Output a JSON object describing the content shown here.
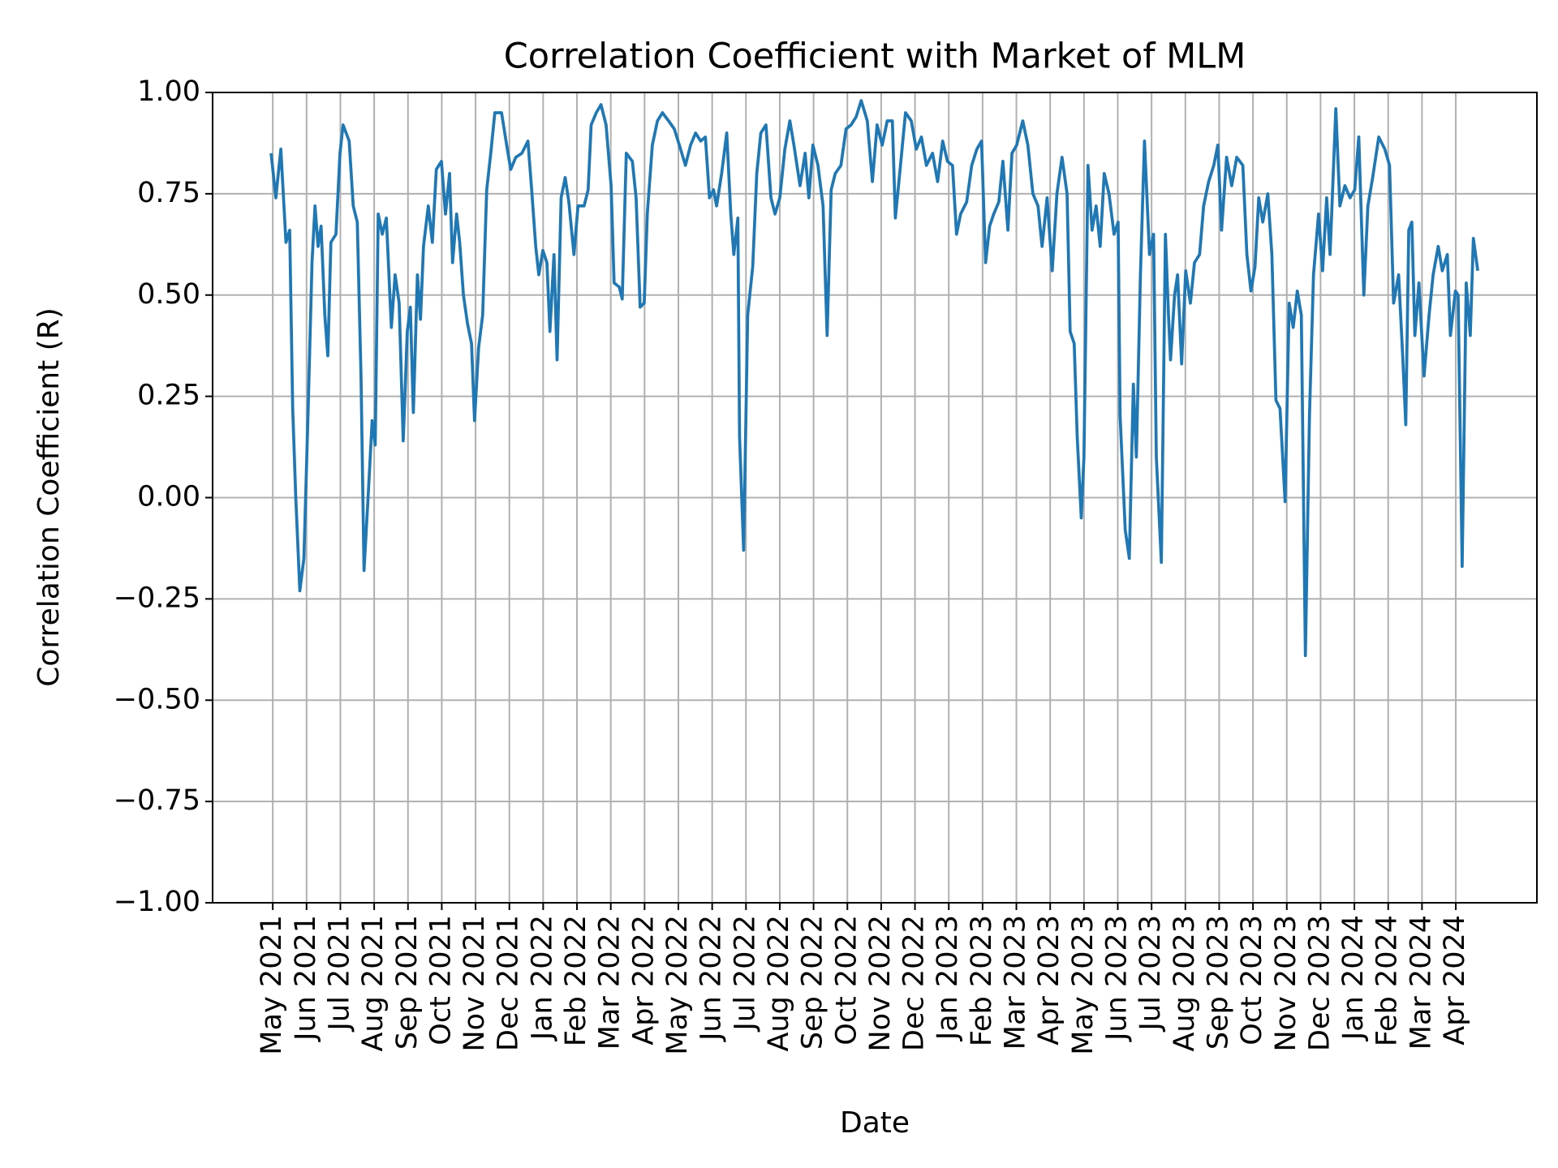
{
  "chart_data": {
    "type": "line",
    "title": "Correlation Coefficient with Market of MLM",
    "x_label": "Date",
    "y_label": "Correlation Coefficient (R)",
    "color": "#1f77b4",
    "grid": true,
    "xlim": [
      -1.78,
      37.4
    ],
    "ylim": [
      -1,
      1
    ],
    "xticks": [
      {
        "value": 0,
        "label": "May 2021"
      },
      {
        "value": 1,
        "label": "Jun 2021"
      },
      {
        "value": 2,
        "label": "Jul 2021"
      },
      {
        "value": 3,
        "label": "Aug 2021"
      },
      {
        "value": 4,
        "label": "Sep 2021"
      },
      {
        "value": 5,
        "label": "Oct 2021"
      },
      {
        "value": 6,
        "label": "Nov 2021"
      },
      {
        "value": 7,
        "label": "Dec 2021"
      },
      {
        "value": 8,
        "label": "Jan 2022"
      },
      {
        "value": 9,
        "label": "Feb 2022"
      },
      {
        "value": 10,
        "label": "Mar 2022"
      },
      {
        "value": 11,
        "label": "Apr 2022"
      },
      {
        "value": 12,
        "label": "May 2022"
      },
      {
        "value": 13,
        "label": "Jun 2022"
      },
      {
        "value": 14,
        "label": "Jul 2022"
      },
      {
        "value": 15,
        "label": "Aug 2022"
      },
      {
        "value": 16,
        "label": "Sep 2022"
      },
      {
        "value": 17,
        "label": "Oct 2022"
      },
      {
        "value": 18,
        "label": "Nov 2022"
      },
      {
        "value": 19,
        "label": "Dec 2022"
      },
      {
        "value": 20,
        "label": "Jan 2023"
      },
      {
        "value": 21,
        "label": "Feb 2023"
      },
      {
        "value": 22,
        "label": "Mar 2023"
      },
      {
        "value": 23,
        "label": "Apr 2023"
      },
      {
        "value": 24,
        "label": "May 2023"
      },
      {
        "value": 25,
        "label": "Jun 2023"
      },
      {
        "value": 26,
        "label": "Jul 2023"
      },
      {
        "value": 27,
        "label": "Aug 2023"
      },
      {
        "value": 28,
        "label": "Sep 2023"
      },
      {
        "value": 29,
        "label": "Oct 2023"
      },
      {
        "value": 30,
        "label": "Nov 2023"
      },
      {
        "value": 31,
        "label": "Dec 2023"
      },
      {
        "value": 32,
        "label": "Jan 2024"
      },
      {
        "value": 33,
        "label": "Feb 2024"
      },
      {
        "value": 34,
        "label": "Mar 2024"
      },
      {
        "value": 35,
        "label": "Apr 2024"
      }
    ],
    "yticks": [
      {
        "value": -1,
        "label": "−1.00"
      },
      {
        "value": -0.75,
        "label": "−0.75"
      },
      {
        "value": -0.5,
        "label": "−0.50"
      },
      {
        "value": -0.25,
        "label": "−0.25"
      },
      {
        "value": 0,
        "label": "0.00"
      },
      {
        "value": 0.25,
        "label": "0.25"
      },
      {
        "value": 0.5,
        "label": "0.50"
      },
      {
        "value": 0.75,
        "label": "0.75"
      },
      {
        "value": 1,
        "label": "1.00"
      }
    ],
    "x": [
      -0.05,
      0.09,
      0.24,
      0.39,
      0.5,
      0.59,
      0.68,
      0.8,
      0.92,
      1.04,
      1.16,
      1.25,
      1.34,
      1.43,
      1.54,
      1.63,
      1.72,
      1.87,
      1.99,
      2.08,
      2.26,
      2.38,
      2.5,
      2.61,
      2.7,
      2.82,
      2.94,
      3.03,
      3.12,
      3.24,
      3.36,
      3.51,
      3.62,
      3.74,
      3.86,
      3.98,
      4.07,
      4.16,
      4.28,
      4.37,
      4.46,
      4.6,
      4.72,
      4.84,
      4.99,
      5.11,
      5.23,
      5.32,
      5.44,
      5.53,
      5.64,
      5.76,
      5.88,
      5.97,
      6.09,
      6.21,
      6.33,
      6.45,
      6.57,
      6.77,
      6.92,
      7.04,
      7.19,
      7.37,
      7.55,
      7.66,
      7.78,
      7.87,
      7.99,
      8.11,
      8.2,
      8.32,
      8.41,
      8.53,
      8.65,
      8.76,
      8.91,
      9.03,
      9.21,
      9.33,
      9.42,
      9.57,
      9.71,
      9.86,
      10.01,
      10.1,
      10.25,
      10.34,
      10.46,
      10.64,
      10.75,
      10.87,
      10.99,
      11.08,
      11.23,
      11.38,
      11.53,
      11.71,
      11.88,
      12.03,
      12.21,
      12.36,
      12.51,
      12.66,
      12.8,
      12.92,
      13.04,
      13.13,
      13.28,
      13.43,
      13.55,
      13.64,
      13.76,
      13.81,
      13.93,
      14.05,
      14.2,
      14.32,
      14.44,
      14.59,
      14.74,
      14.86,
      15.0,
      15.15,
      15.3,
      15.42,
      15.6,
      15.75,
      15.86,
      15.98,
      16.13,
      16.28,
      16.4,
      16.52,
      16.64,
      16.81,
      16.96,
      17.11,
      17.26,
      17.41,
      17.59,
      17.74,
      17.88,
      18.03,
      18.18,
      18.33,
      18.42,
      18.57,
      18.72,
      18.89,
      19.04,
      19.19,
      19.34,
      19.52,
      19.67,
      19.82,
      19.96,
      20.11,
      20.23,
      20.35,
      20.53,
      20.68,
      20.83,
      20.97,
      21.09,
      21.21,
      21.33,
      21.48,
      21.6,
      21.75,
      21.87,
      22.01,
      22.19,
      22.34,
      22.49,
      22.64,
      22.76,
      22.91,
      23.06,
      23.2,
      23.35,
      23.5,
      23.59,
      23.71,
      23.8,
      23.92,
      24.0,
      24.12,
      24.24,
      24.36,
      24.48,
      24.6,
      24.74,
      24.89,
      25.01,
      25.07,
      25.22,
      25.34,
      25.46,
      25.55,
      25.67,
      25.79,
      25.94,
      26.06,
      26.14,
      26.29,
      26.41,
      26.5,
      26.56,
      26.68,
      26.77,
      26.89,
      27.01,
      27.15,
      27.27,
      27.42,
      27.54,
      27.69,
      27.84,
      27.96,
      28.07,
      28.22,
      28.37,
      28.52,
      28.7,
      28.82,
      28.94,
      29.06,
      29.17,
      29.29,
      29.44,
      29.56,
      29.68,
      29.8,
      29.95,
      30.07,
      30.19,
      30.31,
      30.43,
      30.55,
      30.67,
      30.79,
      30.94,
      31.06,
      31.18,
      31.28,
      31.45,
      31.57,
      31.72,
      31.87,
      32.01,
      32.13,
      32.28,
      32.4,
      32.54,
      32.72,
      32.9,
      33.04,
      33.16,
      33.31,
      33.43,
      33.52,
      33.61,
      33.7,
      33.79,
      33.91,
      34.06,
      34.21,
      34.33,
      34.48,
      34.6,
      34.75,
      34.84,
      34.99,
      35.07,
      35.19,
      35.31,
      35.43,
      35.52,
      35.65
    ],
    "values": [
      0.85,
      0.74,
      0.86,
      0.63,
      0.66,
      0.22,
      0.0,
      -0.23,
      -0.15,
      0.2,
      0.58,
      0.72,
      0.62,
      0.67,
      0.45,
      0.35,
      0.63,
      0.65,
      0.85,
      0.92,
      0.88,
      0.72,
      0.68,
      0.3,
      -0.18,
      0.0,
      0.19,
      0.13,
      0.7,
      0.65,
      0.69,
      0.42,
      0.55,
      0.48,
      0.14,
      0.41,
      0.47,
      0.21,
      0.55,
      0.44,
      0.62,
      0.72,
      0.63,
      0.81,
      0.83,
      0.7,
      0.8,
      0.58,
      0.7,
      0.63,
      0.5,
      0.43,
      0.38,
      0.19,
      0.37,
      0.45,
      0.76,
      0.85,
      0.95,
      0.95,
      0.87,
      0.81,
      0.84,
      0.85,
      0.88,
      0.76,
      0.62,
      0.55,
      0.61,
      0.58,
      0.41,
      0.6,
      0.34,
      0.74,
      0.79,
      0.73,
      0.6,
      0.72,
      0.72,
      0.76,
      0.92,
      0.95,
      0.97,
      0.92,
      0.77,
      0.53,
      0.52,
      0.49,
      0.85,
      0.83,
      0.74,
      0.47,
      0.48,
      0.7,
      0.87,
      0.93,
      0.95,
      0.93,
      0.91,
      0.87,
      0.82,
      0.87,
      0.9,
      0.88,
      0.89,
      0.74,
      0.76,
      0.72,
      0.8,
      0.9,
      0.7,
      0.6,
      0.69,
      0.15,
      -0.13,
      0.45,
      0.57,
      0.8,
      0.9,
      0.92,
      0.74,
      0.7,
      0.74,
      0.86,
      0.93,
      0.87,
      0.77,
      0.85,
      0.74,
      0.87,
      0.82,
      0.72,
      0.4,
      0.76,
      0.8,
      0.82,
      0.91,
      0.92,
      0.94,
      0.98,
      0.93,
      0.78,
      0.92,
      0.87,
      0.93,
      0.93,
      0.69,
      0.82,
      0.95,
      0.93,
      0.86,
      0.89,
      0.82,
      0.85,
      0.78,
      0.88,
      0.83,
      0.82,
      0.65,
      0.7,
      0.73,
      0.82,
      0.86,
      0.88,
      0.58,
      0.67,
      0.7,
      0.73,
      0.83,
      0.66,
      0.85,
      0.87,
      0.93,
      0.87,
      0.75,
      0.72,
      0.62,
      0.74,
      0.56,
      0.75,
      0.84,
      0.75,
      0.41,
      0.38,
      0.15,
      -0.05,
      0.1,
      0.82,
      0.66,
      0.72,
      0.62,
      0.8,
      0.75,
      0.65,
      0.68,
      0.2,
      -0.08,
      -0.15,
      0.28,
      0.1,
      0.55,
      0.88,
      0.6,
      0.65,
      0.1,
      -0.16,
      0.65,
      0.45,
      0.34,
      0.5,
      0.55,
      0.33,
      0.56,
      0.48,
      0.58,
      0.6,
      0.72,
      0.78,
      0.82,
      0.87,
      0.66,
      0.84,
      0.77,
      0.84,
      0.82,
      0.6,
      0.51,
      0.57,
      0.74,
      0.68,
      0.75,
      0.6,
      0.24,
      0.22,
      -0.01,
      0.48,
      0.42,
      0.51,
      0.45,
      -0.39,
      0.2,
      0.55,
      0.7,
      0.56,
      0.74,
      0.6,
      0.96,
      0.72,
      0.77,
      0.74,
      0.76,
      0.89,
      0.5,
      0.72,
      0.79,
      0.89,
      0.86,
      0.82,
      0.48,
      0.55,
      0.35,
      0.18,
      0.66,
      0.68,
      0.4,
      0.53,
      0.3,
      0.45,
      0.55,
      0.62,
      0.56,
      0.6,
      0.4,
      0.51,
      0.5,
      -0.17,
      0.53,
      0.4,
      0.64,
      0.56
    ]
  }
}
